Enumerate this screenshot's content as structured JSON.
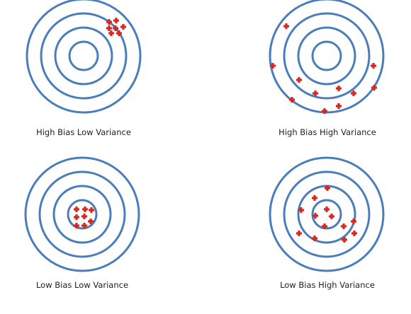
{
  "colors": {
    "ring": "#4A7EBB",
    "marker": "#D9261C",
    "label": "#222222",
    "background": "#FFFFFF"
  },
  "marker_glyph": "plus-cross",
  "panels": [
    {
      "key": "hblv",
      "caption": "High Bias Low Variance",
      "bias": "High",
      "variance": "Low"
    },
    {
      "key": "hbhv",
      "caption": "High Bias High Variance",
      "bias": "High",
      "variance": "High"
    },
    {
      "key": "lblv",
      "caption": "Low Bias Low Variance",
      "bias": "Low",
      "variance": "Low"
    },
    {
      "key": "lbhv",
      "caption": "Low Bias High Variance",
      "bias": "Low",
      "variance": "High"
    }
  ]
}
